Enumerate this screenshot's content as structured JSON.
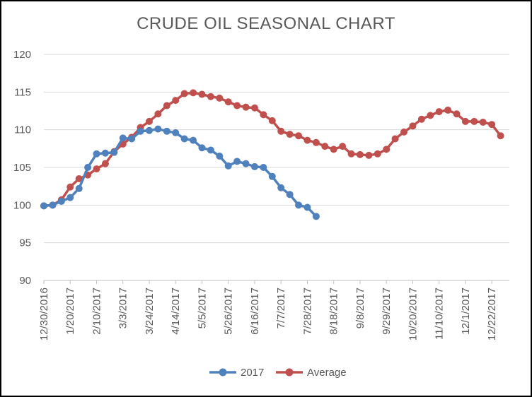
{
  "chart_data": {
    "type": "line",
    "title": "CRUDE OIL SEASONAL CHART",
    "xlabel": "",
    "ylabel": "",
    "ylim": [
      90,
      120
    ],
    "yticks": [
      90,
      95,
      100,
      105,
      110,
      115,
      120
    ],
    "xlim": [
      "12/30/2016",
      "1/5/2018"
    ],
    "xticks": [
      "12/30/2016",
      "1/20/2017",
      "2/10/2017",
      "3/3/2017",
      "3/24/2017",
      "4/14/2017",
      "5/5/2017",
      "5/26/2017",
      "6/16/2017",
      "7/7/2017",
      "7/28/2017",
      "8/18/2017",
      "9/8/2017",
      "9/29/2017",
      "10/20/2017",
      "11/10/2017",
      "12/1/2017",
      "12/22/2017"
    ],
    "grid": true,
    "legend": "bottom",
    "series": [
      {
        "name": "2017",
        "color": "#4f81bd",
        "start": "12/30/2016",
        "step_days": 7,
        "values": [
          99.9,
          100.0,
          100.5,
          101.0,
          102.2,
          105.0,
          106.8,
          106.9,
          107.0,
          108.9,
          108.8,
          109.8,
          109.9,
          110.1,
          109.8,
          109.6,
          108.8,
          108.6,
          107.6,
          107.3,
          106.5,
          105.2,
          105.8,
          105.5,
          105.1,
          105.0,
          103.8,
          102.3,
          101.4,
          100.0,
          99.7,
          98.5
        ]
      },
      {
        "name": "Average",
        "color": "#c0504d",
        "start": "12/30/2016",
        "step_days": 7,
        "values": [
          99.9,
          100.0,
          100.7,
          102.4,
          103.5,
          104.0,
          104.8,
          105.5,
          107.1,
          108.1,
          109.0,
          110.3,
          111.1,
          112.1,
          113.2,
          113.9,
          114.8,
          114.9,
          114.7,
          114.4,
          114.2,
          113.7,
          113.2,
          113.0,
          112.9,
          112.0,
          111.2,
          109.8,
          109.4,
          109.2,
          108.6,
          108.3,
          107.8,
          107.4,
          107.8,
          106.8,
          106.7,
          106.6,
          106.8,
          107.4,
          108.8,
          109.7,
          110.5,
          111.4,
          111.9,
          112.4,
          112.6,
          112.1,
          111.1,
          111.1,
          111.0,
          110.7,
          109.2
        ]
      }
    ]
  }
}
